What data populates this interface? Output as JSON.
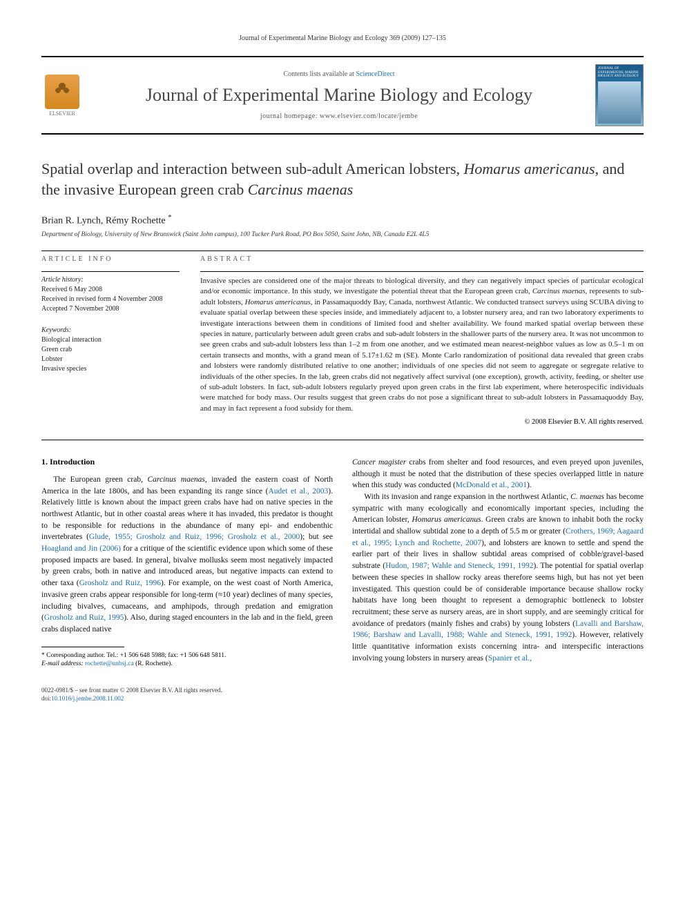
{
  "running_header": "Journal of Experimental Marine Biology and Ecology 369 (2009) 127–135",
  "masthead": {
    "lists_prefix": "Contents lists available at ",
    "lists_link": "ScienceDirect",
    "journal_name": "Journal of Experimental Marine Biology and Ecology",
    "homepage_prefix": "journal homepage: ",
    "homepage_url": "www.elsevier.com/locate/jembe",
    "elsevier_label": "ELSEVIER",
    "cover_title": "JOURNAL OF EXPERIMENTAL MARINE BIOLOGY AND ECOLOGY"
  },
  "title_parts": [
    {
      "t": "Spatial overlap and interaction between sub-adult American lobsters, ",
      "i": false
    },
    {
      "t": "Homarus americanus",
      "i": true
    },
    {
      "t": ", and the invasive European green crab ",
      "i": false
    },
    {
      "t": "Carcinus maenas",
      "i": true
    }
  ],
  "authors": "Brian R. Lynch, Rémy Rochette",
  "authors_marker": "*",
  "affiliation": "Department of Biology, University of New Brunswick (Saint John campus), 100 Tucker Park Road, PO Box 5050, Saint John, NB, Canada E2L 4L5",
  "info": {
    "label": "ARTICLE INFO",
    "history_heading": "Article history:",
    "history": [
      "Received 6 May 2008",
      "Received in revised form 4 November 2008",
      "Accepted 7 November 2008"
    ],
    "keywords_heading": "Keywords:",
    "keywords": [
      "Biological interaction",
      "Green crab",
      "Lobster",
      "Invasive species"
    ]
  },
  "abstract": {
    "label": "ABSTRACT",
    "runs": [
      {
        "t": "Invasive species are considered one of the major threats to biological diversity, and they can negatively impact species of particular ecological and/or economic importance. In this study, we investigate the potential threat that the European green crab, ",
        "i": false
      },
      {
        "t": "Carcinus maenas",
        "i": true
      },
      {
        "t": ", represents to sub-adult lobsters, ",
        "i": false
      },
      {
        "t": "Homarus americanus",
        "i": true
      },
      {
        "t": ", in Passamaquoddy Bay, Canada, northwest Atlantic. We conducted transect surveys using SCUBA diving to evaluate spatial overlap between these species inside, and immediately adjacent to, a lobster nursery area, and ran two laboratory experiments to investigate interactions between them in conditions of limited food and shelter availability. We found marked spatial overlap between these species in nature, particularly between adult green crabs and sub-adult lobsters in the shallower parts of the nursery area. It was not uncommon to see green crabs and sub-adult lobsters less than 1–2 m from one another, and we estimated mean nearest-neighbor values as low as 0.5–1 m on certain transects and months, with a grand mean of 5.17±1.62 m (SE). Monte Carlo randomization of positional data revealed that green crabs and lobsters were randomly distributed relative to one another; individuals of one species did not seem to aggregate or segregate relative to individuals of the other species. In the lab, green crabs did not negatively affect survival (one exception), growth, activity, feeding, or shelter use of sub-adult lobsters. In fact, sub-adult lobsters regularly preyed upon green crabs in the first lab experiment, where heterospecific individuals were matched for body mass. Our results suggest that green crabs do not pose a significant threat to sub-adult lobsters in Passamaquoddy Bay, and may in fact represent a food subsidy for them.",
        "i": false
      }
    ],
    "copyright": "© 2008 Elsevier B.V. All rights reserved."
  },
  "intro": {
    "heading": "1. Introduction",
    "col1_runs": [
      {
        "t": "The European green crab, "
      },
      {
        "t": "Carcinus maenas",
        "i": true
      },
      {
        "t": ", invaded the eastern coast of North America in the late 1800s, and has been expanding its range since ("
      },
      {
        "t": "Audet et al., 2003",
        "l": true
      },
      {
        "t": "). Relatively little is known about the impact green crabs have had on native species in the northwest Atlantic, but in other coastal areas where it has invaded, this predator is thought to be responsible for reductions in the abundance of many epi- and endobenthic invertebrates ("
      },
      {
        "t": "Glude, 1955; Grosholz and Ruiz, 1996; Grosholz et al., 2000",
        "l": true
      },
      {
        "t": "); but see "
      },
      {
        "t": "Hoagland and Jin (2006)",
        "l": true
      },
      {
        "t": " for a critique of the scientific evidence upon which some of these proposed impacts are based. In general, bivalve mollusks seem most negatively impacted by green crabs, both in native and introduced areas, but negative impacts can extend to other taxa ("
      },
      {
        "t": "Grosholz and Ruiz, 1996",
        "l": true
      },
      {
        "t": "). For example, on the west coast of North America, invasive green crabs appear responsible for long-term (≈10 year) declines of many species, including bivalves, cumaceans, and amphipods, through predation and emigration ("
      },
      {
        "t": "Grosholz and Ruiz, 1995",
        "l": true
      },
      {
        "t": "). Also, during staged encounters in the lab and in the field, green crabs displaced native"
      }
    ],
    "col2_runs": [
      {
        "t": "Cancer magister",
        "i": true
      },
      {
        "t": " crabs from shelter and food resources, and even preyed upon juveniles, although it must be noted that the distribution of these species overlapped little in nature when this study was conducted ("
      },
      {
        "t": "McDonald et al., 2001",
        "l": true
      },
      {
        "t": ")."
      }
    ],
    "col2_p2_runs": [
      {
        "t": "With its invasion and range expansion in the northwest Atlantic, "
      },
      {
        "t": "C. maenas",
        "i": true
      },
      {
        "t": " has become sympatric with many ecologically and economically important species, including the American lobster, "
      },
      {
        "t": "Homarus americanus",
        "i": true
      },
      {
        "t": ". Green crabs are known to inhabit both the rocky intertidal and shallow subtidal zone to a depth of 5.5 m or greater ("
      },
      {
        "t": "Crothers, 1969; Aagaard et al., 1995; Lynch and Rochette, 2007",
        "l": true
      },
      {
        "t": "), and lobsters are known to settle and spend the earlier part of their lives in shallow subtidal areas comprised of cobble/gravel-based substrate ("
      },
      {
        "t": "Hudon, 1987; Wahle and Steneck, 1991, 1992",
        "l": true
      },
      {
        "t": "). The potential for spatial overlap between these species in shallow rocky areas therefore seems high, but has not yet been investigated. This question could be of considerable importance because shallow rocky habitats have long been thought to represent a demographic bottleneck to lobster recruitment; these serve as nursery areas, are in short supply, and are seemingly critical for avoidance of predators (mainly fishes and crabs) by young lobsters ("
      },
      {
        "t": "Lavalli and Barshaw, 1986; Barshaw and Lavalli, 1988; Wahle and Steneck, 1991, 1992",
        "l": true
      },
      {
        "t": "). However, relatively little quantitative information exists concerning intra- and interspecific interactions involving young lobsters in nursery areas ("
      },
      {
        "t": "Spanier et al.,",
        "l": true
      }
    ]
  },
  "footnote": {
    "corr_label": "* Corresponding author. Tel.: +1 506 648 5988; fax: +1 506 648 5811.",
    "email_label": "E-mail address:",
    "email": "rochette@unbsj.ca",
    "email_who": "(R. Rochette)."
  },
  "footer": {
    "line1": "0022-0981/$ – see front matter © 2008 Elsevier B.V. All rights reserved.",
    "doi_label": "doi:",
    "doi": "10.1016/j.jembe.2008.11.002"
  },
  "colors": {
    "link": "#1a6bb3",
    "text": "#111111",
    "rule": "#000000"
  }
}
